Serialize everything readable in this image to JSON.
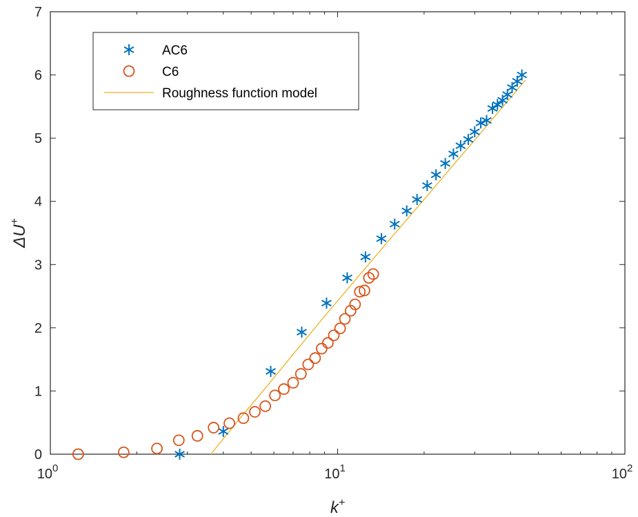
{
  "chart_data": {
    "type": "scatter",
    "xlabel": "k",
    "xlabel_sup": "+",
    "ylabel": "ΔU",
    "ylabel_sup": "+",
    "x_scale": "log",
    "xlim": [
      1,
      100
    ],
    "ylim": [
      0,
      7
    ],
    "x_ticks": [
      {
        "value": 1,
        "base": "10",
        "exp": "0"
      },
      {
        "value": 10,
        "base": "10",
        "exp": "1"
      },
      {
        "value": 100,
        "base": "10",
        "exp": "2"
      }
    ],
    "y_ticks": [
      0,
      1,
      2,
      3,
      4,
      5,
      6,
      7
    ],
    "grid": false,
    "legend_position": "top-left",
    "series": [
      {
        "name": "AC6",
        "marker": "asterisk",
        "color": "#0072BD",
        "x": [
          2.82,
          4.0,
          5.85,
          7.5,
          9.15,
          10.8,
          12.5,
          14.2,
          15.8,
          17.4,
          18.9,
          20.5,
          22.0,
          23.7,
          25.3,
          26.8,
          28.5,
          30.0,
          31.5,
          33.0,
          34.6,
          36.0,
          37.5,
          39.0,
          40.5,
          42.2,
          43.8
        ],
        "y": [
          0.0,
          0.36,
          1.31,
          1.93,
          2.39,
          2.79,
          3.12,
          3.41,
          3.64,
          3.85,
          4.03,
          4.25,
          4.42,
          4.6,
          4.75,
          4.88,
          4.98,
          5.1,
          5.24,
          5.28,
          5.47,
          5.53,
          5.6,
          5.69,
          5.8,
          5.9,
          6.0
        ]
      },
      {
        "name": "C6",
        "marker": "circle",
        "color": "#D95319",
        "x": [
          1.25,
          1.8,
          2.35,
          2.8,
          3.25,
          3.7,
          4.2,
          4.7,
          5.15,
          5.6,
          6.05,
          6.5,
          7.0,
          7.45,
          7.9,
          8.35,
          8.8,
          9.25,
          9.7,
          10.2,
          10.6,
          11.1,
          11.5,
          11.95,
          12.4,
          12.85,
          13.3
        ],
        "y": [
          0.0,
          0.03,
          0.09,
          0.22,
          0.29,
          0.42,
          0.49,
          0.57,
          0.67,
          0.76,
          0.93,
          1.03,
          1.13,
          1.27,
          1.42,
          1.52,
          1.67,
          1.76,
          1.88,
          1.99,
          2.14,
          2.27,
          2.37,
          2.57,
          2.59,
          2.79,
          2.85
        ]
      },
      {
        "name": "Roughness function model",
        "marker": "line",
        "color": "#EDB120",
        "x": [
          3.62,
          4.5,
          5.5,
          7.0,
          9.0,
          12.0,
          15.0,
          20.0,
          25.0,
          30.0,
          35.0,
          40.0,
          45.0
        ],
        "y": [
          0.0,
          0.53,
          1.0,
          1.58,
          2.18,
          2.85,
          3.37,
          4.03,
          4.55,
          4.97,
          5.33,
          5.64,
          5.92
        ]
      }
    ]
  }
}
